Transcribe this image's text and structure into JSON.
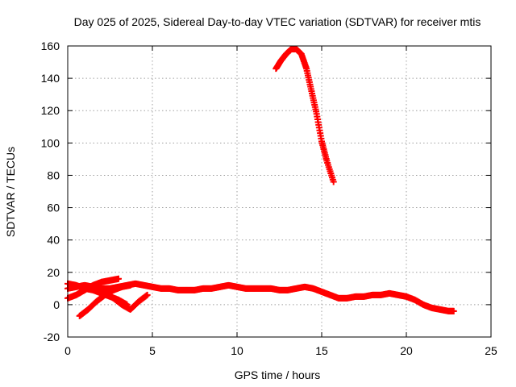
{
  "chart_data": {
    "type": "scatter",
    "title": "Day 025 of 2025, Sidereal Day-to-day VTEC variation (SDTVAR) for receiver mtis",
    "xlabel": "GPS time / hours",
    "ylabel": "SDTVAR / TECUs",
    "xlim": [
      0,
      25
    ],
    "ylim": [
      -20,
      160
    ],
    "xticks": [
      0,
      5,
      10,
      15,
      20,
      25
    ],
    "yticks": [
      -20,
      0,
      20,
      40,
      60,
      80,
      100,
      120,
      140,
      160
    ],
    "grid": true,
    "marker": "plus",
    "color": "#ff0000",
    "series": [
      {
        "name": "main-trace",
        "x": [
          0.0,
          0.5,
          1.0,
          1.5,
          2.0,
          2.5,
          3.0,
          3.5,
          4.0,
          4.5,
          5.0,
          5.5,
          6.0,
          6.5,
          7.0,
          7.5,
          8.0,
          8.5,
          9.0,
          9.5,
          10.0,
          10.5,
          11.0,
          11.5,
          12.0,
          12.5,
          13.0,
          13.5,
          14.0,
          14.5,
          15.0,
          15.5,
          16.0,
          16.5,
          17.0,
          17.5,
          18.0,
          18.5,
          19.0,
          19.5,
          20.0,
          20.5,
          21.0,
          21.5,
          22.0,
          22.5,
          22.8
        ],
        "y": [
          10,
          11,
          12,
          11,
          10,
          10,
          11,
          12,
          13,
          12,
          11,
          10,
          10,
          9,
          9,
          9,
          10,
          10,
          11,
          12,
          11,
          10,
          10,
          10,
          10,
          9,
          9,
          10,
          11,
          10,
          8,
          6,
          4,
          4,
          5,
          5,
          6,
          6,
          7,
          6,
          5,
          3,
          0,
          -2,
          -3,
          -4,
          -4
        ]
      },
      {
        "name": "rising-arc-early",
        "x": [
          0.0,
          0.5,
          1.0,
          1.5,
          2.0,
          2.5,
          3.0
        ],
        "y": [
          4,
          6,
          9,
          12,
          14,
          15,
          16
        ]
      },
      {
        "name": "descending-arc-early",
        "x": [
          0.0,
          0.5,
          1.0,
          1.5,
          2.0,
          2.5,
          3.0,
          3.5
        ],
        "y": [
          13,
          12,
          10,
          9,
          7,
          5,
          3,
          0
        ]
      },
      {
        "name": "crossing-arc-early",
        "x": [
          0.7,
          1.2,
          1.7,
          2.2,
          2.7,
          3.2,
          3.7
        ],
        "y": [
          -7,
          -3,
          2,
          6,
          9,
          11,
          12
        ]
      },
      {
        "name": "dipping-arc-early",
        "x": [
          2.2,
          2.7,
          3.2,
          3.7,
          4.2,
          4.7
        ],
        "y": [
          8,
          4,
          0,
          -3,
          2,
          6
        ]
      },
      {
        "name": "high-arc",
        "x": [
          12.3,
          12.6,
          12.9,
          13.2,
          13.5,
          13.8,
          14.1,
          14.4,
          14.7,
          15.0,
          15.3,
          15.7
        ],
        "y": [
          146,
          151,
          155,
          158,
          158,
          155,
          146,
          132,
          118,
          101,
          89,
          76
        ]
      }
    ]
  }
}
